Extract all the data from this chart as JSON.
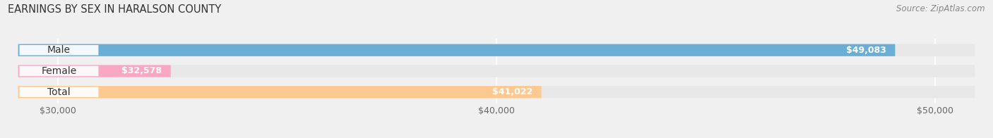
{
  "title": "EARNINGS BY SEX IN HARALSON COUNTY",
  "source": "Source: ZipAtlas.com",
  "categories": [
    "Male",
    "Female",
    "Total"
  ],
  "values": [
    49083,
    32578,
    41022
  ],
  "bar_colors": [
    "#6aaed6",
    "#f9a8c4",
    "#fdc991"
  ],
  "bar_bg_color": "#e2e2e2",
  "xmin": 30000,
  "xmax": 50000,
  "xticks": [
    30000,
    40000,
    50000
  ],
  "xtick_labels": [
    "$30,000",
    "$40,000",
    "$50,000"
  ],
  "title_fontsize": 10.5,
  "source_fontsize": 8.5,
  "tick_fontsize": 9,
  "bar_label_fontsize": 9,
  "category_fontsize": 10,
  "fig_bg_color": "#f0f0f0",
  "bar_bg_color2": "#e8e8e8"
}
